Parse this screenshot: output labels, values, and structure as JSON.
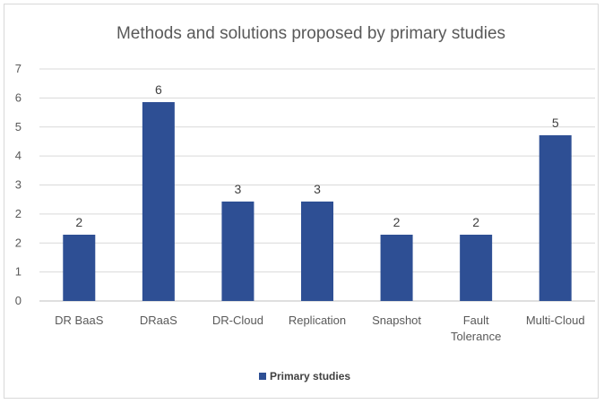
{
  "chart_data": {
    "type": "bar",
    "title": "Methods and solutions proposed by primary studies",
    "categories": [
      "DR BaaS",
      "DRaaS",
      "DR-Cloud",
      "Replication",
      "Snapshot",
      "Fault Tolerance",
      "Multi-Cloud"
    ],
    "category_lines": [
      [
        "DR BaaS"
      ],
      [
        "DRaaS"
      ],
      [
        "DR-Cloud"
      ],
      [
        "Replication"
      ],
      [
        "Snapshot"
      ],
      [
        "Fault",
        "Tolerance"
      ],
      [
        "Multi-Cloud"
      ]
    ],
    "series": [
      {
        "name": "Primary studies",
        "values": [
          2,
          6,
          3,
          3,
          2,
          2,
          5
        ],
        "color": "#2e4f94"
      }
    ],
    "data_labels": [
      "2",
      "6",
      "3",
      "3",
      "2",
      "2",
      "5"
    ],
    "y_ticks": [
      "0",
      "1",
      "2",
      "2",
      "3",
      "4",
      "5",
      "6",
      "7"
    ],
    "ylim": [
      0,
      7
    ],
    "grid": true,
    "legend_position": "bottom",
    "xlabel": "",
    "ylabel": ""
  }
}
